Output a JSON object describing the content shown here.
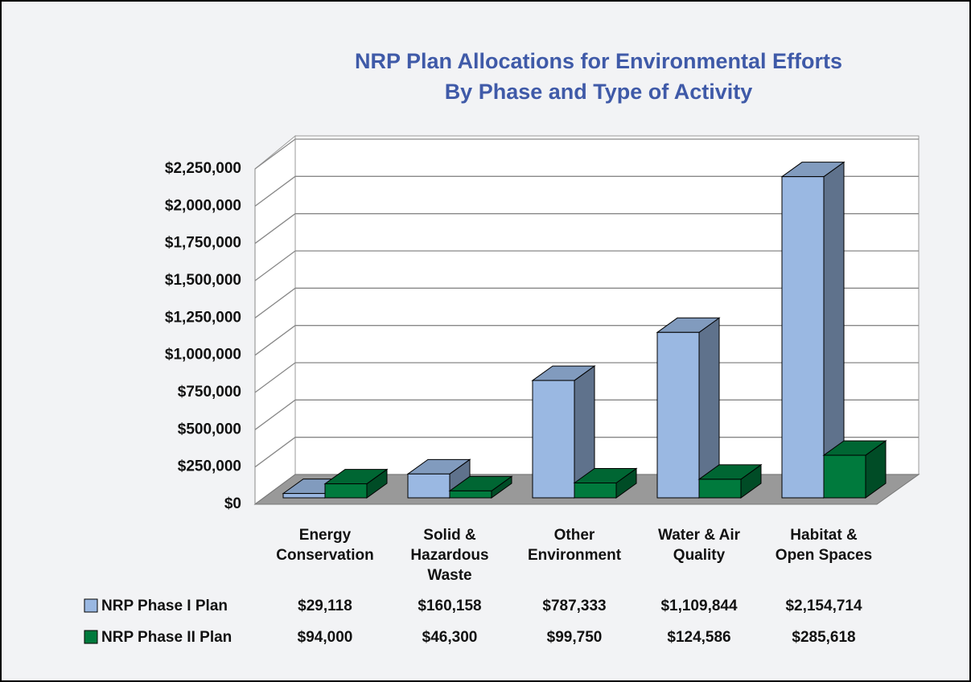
{
  "chart_data": {
    "type": "bar3d",
    "title": "NRP Plan Allocations for Environmental Efforts",
    "subtitle": "By Phase and Type of Activity",
    "categories": [
      "Energy Conservation",
      "Solid & Hazardous Waste",
      "Other Environment",
      "Water & Air Quality",
      "Habitat & Open Spaces"
    ],
    "series": [
      {
        "name": "NRP Phase I Plan",
        "color": "#9ab8e2",
        "values": [
          29118,
          160158,
          787333,
          1109844,
          2154714
        ],
        "value_labels": [
          "$29,118",
          "$160,158",
          "$787,333",
          "$1,109,844",
          "$2,154,714"
        ]
      },
      {
        "name": "NRP Phase II Plan",
        "color": "#007a3d",
        "values": [
          94000,
          46300,
          99750,
          124586,
          285618
        ],
        "value_labels": [
          "$94,000",
          "$46,300",
          "$99,750",
          "$124,586",
          "$285,618"
        ]
      }
    ],
    "ylim": [
      0,
      2250000
    ],
    "yticks": [
      {
        "value": 0,
        "label": "$0"
      },
      {
        "value": 250000,
        "label": "$250,000"
      },
      {
        "value": 500000,
        "label": "$500,000"
      },
      {
        "value": 750000,
        "label": "$750,000"
      },
      {
        "value": 1000000,
        "label": "$1,000,000"
      },
      {
        "value": 1250000,
        "label": "$1,250,000"
      },
      {
        "value": 1500000,
        "label": "$1,500,000"
      },
      {
        "value": 1750000,
        "label": "$1,750,000"
      },
      {
        "value": 2000000,
        "label": "$2,000,000"
      },
      {
        "value": 2250000,
        "label": "$2,250,000"
      }
    ],
    "grid": true
  }
}
